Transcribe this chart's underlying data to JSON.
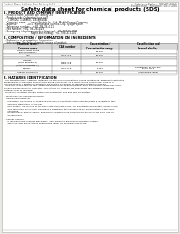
{
  "bg_color": "#e8e8e4",
  "page_bg": "#ffffff",
  "title": "Safety data sheet for chemical products (SDS)",
  "header_left": "Product Name: Lithium Ion Battery Cell",
  "header_right_line1": "Substance Number: SBN-049-00619",
  "header_right_line2": "Established / Revision: Dec.7,2016",
  "section1_title": "1. PRODUCT AND COMPANY IDENTIFICATION",
  "section1_items": [
    "  - Product name: Lithium Ion Battery Cell",
    "  - Product code: Cylindrical-type cell",
    "      (18650U, 18168650, 18180650A",
    "  - Company name:     Sanyo Electric Co., Ltd., Mobile Energy Company",
    "  - Address:             2001  Kamikosaka, Sumoto-City, Hyogo, Japan",
    "  - Telephone number:    +81-799-26-4111",
    "  - Fax number:  +81-799-26-4129",
    "  - Emergency telephone number (daytime): +81-799-26-3962",
    "                                  [Night and holiday]: +81-799-26-3101"
  ],
  "section2_title": "2. COMPOSITION / INFORMATION ON INGREDIENTS",
  "section2_sub": "  - Substance or preparation: Preparation",
  "section2_sub2": "  - Information about the chemical nature of product:",
  "table_headers": [
    "Chemical name /\nCommon name",
    "CAS number",
    "Concentration /\nConcentration range",
    "Classification and\nhazard labeling"
  ],
  "table_rows": [
    [
      "Lithium cobalt oxide\n(LiMnxCoyNizO2)",
      "-",
      "30-40%",
      ""
    ],
    [
      "Iron",
      "7439-89-6",
      "15-25%",
      "-"
    ],
    [
      "Aluminum",
      "7429-90-5",
      "2-8%",
      "-"
    ],
    [
      "Graphite\n(Flaky graphite-1)\n(Artificial graphite-1)",
      "7782-42-5\n7782-42-5",
      "10-20%",
      ""
    ],
    [
      "Copper",
      "7440-50-8",
      "5-15%",
      "Sensitization of the skin\ngroup No.2"
    ],
    [
      "Organic electrolyte",
      "-",
      "10-20%",
      "Inflammable liquid"
    ]
  ],
  "section3_title": "3. HAZARDS IDENTIFICATION",
  "section3_paras": [
    "   For the battery cell, chemical materials are stored in a hermetically-sealed metal case, designed to withstand",
    "temperatures or pressures encountered during normal use. As a result, during normal use, there is no",
    "physical danger of ignition or explosion and there is no danger of hazardous materials leakage.",
    "   However, if exposed to a fire, added mechanical shocks, decomposed, when electrolyte release may occur,",
    "the gas release cannot be operated. The battery cell case will be breached of fire-pathway, hazardous",
    "materials may be released.",
    "   Moreover, if heated strongly by the surrounding fire, soot gas may be emitted.",
    "",
    "  - Most important hazard and effects:",
    "    Human health effects:",
    "      Inhalation: The release of the electrolyte has an anesthetic action and stimulates a respiratory tract.",
    "      Skin contact: The release of the electrolyte stimulates a skin. The electrolyte skin contact causes a",
    "      sore and stimulation on the skin.",
    "      Eye contact: The release of the electrolyte stimulates eyes. The electrolyte eye contact causes a sore",
    "      and stimulation on the eye. Especially, a substance that causes a strong inflammation of the eye is",
    "      contained.",
    "      Environmental effects: Since a battery cell remains in the environment, do not throw out it into the",
    "      environment.",
    "",
    "  - Specific hazards:",
    "      If the electrolyte contacts with water, it will generate detrimental hydrogen fluoride.",
    "      Since the used electrolyte is inflammable liquid, do not bring close to fire."
  ]
}
